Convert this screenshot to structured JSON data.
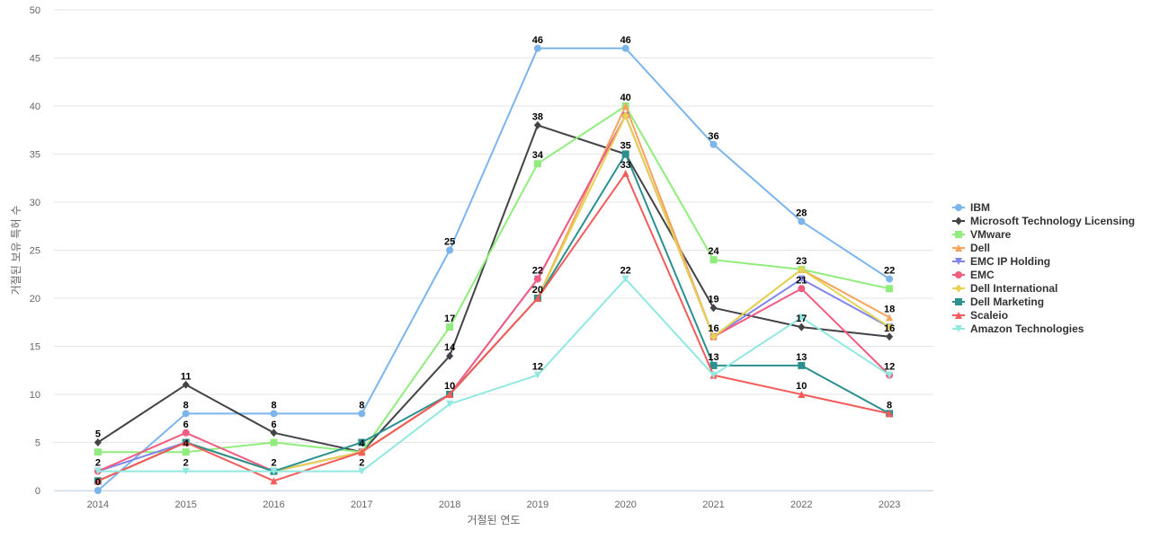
{
  "chart_data": {
    "type": "line",
    "xlabel": "거절된 연도",
    "ylabel": "거절된 보유 특허 수",
    "ylim": [
      0,
      50
    ],
    "yticks": [
      0,
      5,
      10,
      15,
      20,
      25,
      30,
      35,
      40,
      45,
      50
    ],
    "grid": true,
    "legend_position": "right",
    "categories": [
      "2014",
      "2015",
      "2016",
      "2017",
      "2018",
      "2019",
      "2020",
      "2021",
      "2022",
      "2023"
    ],
    "series": [
      {
        "name": "IBM",
        "color": "#7cb5ec",
        "marker": "circle",
        "values": [
          0,
          8,
          8,
          8,
          25,
          46,
          46,
          36,
          28,
          22
        ]
      },
      {
        "name": "Microsoft Technology Licensing",
        "color": "#434348",
        "marker": "diamond",
        "values": [
          5,
          11,
          6,
          4,
          14,
          38,
          35,
          19,
          17,
          16
        ]
      },
      {
        "name": "VMware",
        "color": "#90ed7d",
        "marker": "square",
        "values": [
          4,
          4,
          5,
          4,
          17,
          34,
          40,
          24,
          23,
          21
        ]
      },
      {
        "name": "Dell",
        "color": "#f7a35c",
        "marker": "triangle",
        "values": [
          1,
          5,
          2,
          4,
          10,
          20,
          40,
          16,
          23,
          18
        ]
      },
      {
        "name": "EMC IP Holding",
        "color": "#8085e9",
        "marker": "triangle-down",
        "values": [
          2,
          5,
          2,
          4,
          10,
          22,
          39,
          16,
          22,
          17
        ]
      },
      {
        "name": "EMC",
        "color": "#f15c80",
        "marker": "circle",
        "values": [
          2,
          6,
          2,
          4,
          10,
          22,
          39,
          16,
          21,
          12
        ]
      },
      {
        "name": "Dell International",
        "color": "#e4d354",
        "marker": "diamond",
        "values": [
          1,
          5,
          2,
          4,
          10,
          20,
          39,
          16,
          23,
          17
        ]
      },
      {
        "name": "Dell Marketing",
        "color": "#2b908f",
        "marker": "square",
        "values": [
          1,
          5,
          2,
          5,
          10,
          20,
          35,
          13,
          13,
          8
        ]
      },
      {
        "name": "Scaleio",
        "color": "#f45b5b",
        "marker": "triangle",
        "values": [
          1,
          5,
          1,
          4,
          10,
          20,
          33,
          12,
          10,
          8
        ]
      },
      {
        "name": "Amazon Technologies",
        "color": "#91e8e1",
        "marker": "triangle-down",
        "values": [
          2,
          2,
          2,
          2,
          9,
          12,
          22,
          12,
          18,
          12
        ]
      }
    ],
    "data_labels": [
      {
        "x": "2014",
        "y": 5,
        "text": "5"
      },
      {
        "x": "2014",
        "y": 2,
        "text": "2"
      },
      {
        "x": "2014",
        "y": 0,
        "text": "0"
      },
      {
        "x": "2015",
        "y": 11,
        "text": "11"
      },
      {
        "x": "2015",
        "y": 8,
        "text": "8"
      },
      {
        "x": "2015",
        "y": 6,
        "text": "6"
      },
      {
        "x": "2015",
        "y": 4,
        "text": "4"
      },
      {
        "x": "2015",
        "y": 2,
        "text": "2"
      },
      {
        "x": "2016",
        "y": 8,
        "text": "8"
      },
      {
        "x": "2016",
        "y": 6,
        "text": "6"
      },
      {
        "x": "2016",
        "y": 2,
        "text": "2"
      },
      {
        "x": "2017",
        "y": 8,
        "text": "8"
      },
      {
        "x": "2017",
        "y": 4,
        "text": "4"
      },
      {
        "x": "2017",
        "y": 2,
        "text": "2"
      },
      {
        "x": "2018",
        "y": 25,
        "text": "25"
      },
      {
        "x": "2018",
        "y": 17,
        "text": "17"
      },
      {
        "x": "2018",
        "y": 14,
        "text": "14"
      },
      {
        "x": "2018",
        "y": 10,
        "text": "10"
      },
      {
        "x": "2019",
        "y": 46,
        "text": "46"
      },
      {
        "x": "2019",
        "y": 38,
        "text": "38"
      },
      {
        "x": "2019",
        "y": 34,
        "text": "34"
      },
      {
        "x": "2019",
        "y": 22,
        "text": "22"
      },
      {
        "x": "2019",
        "y": 20,
        "text": "20"
      },
      {
        "x": "2019",
        "y": 12,
        "text": "12"
      },
      {
        "x": "2020",
        "y": 46,
        "text": "46"
      },
      {
        "x": "2020",
        "y": 40,
        "text": "40"
      },
      {
        "x": "2020",
        "y": 35,
        "text": "35"
      },
      {
        "x": "2020",
        "y": 33,
        "text": "33"
      },
      {
        "x": "2020",
        "y": 22,
        "text": "22"
      },
      {
        "x": "2021",
        "y": 36,
        "text": "36"
      },
      {
        "x": "2021",
        "y": 24,
        "text": "24"
      },
      {
        "x": "2021",
        "y": 19,
        "text": "19"
      },
      {
        "x": "2021",
        "y": 16,
        "text": "16"
      },
      {
        "x": "2021",
        "y": 13,
        "text": "13"
      },
      {
        "x": "2022",
        "y": 28,
        "text": "28"
      },
      {
        "x": "2022",
        "y": 23,
        "text": "23"
      },
      {
        "x": "2022",
        "y": 21,
        "text": "21"
      },
      {
        "x": "2022",
        "y": 17,
        "text": "17"
      },
      {
        "x": "2022",
        "y": 13,
        "text": "13"
      },
      {
        "x": "2022",
        "y": 10,
        "text": "10"
      },
      {
        "x": "2023",
        "y": 22,
        "text": "22"
      },
      {
        "x": "2023",
        "y": 18,
        "text": "18"
      },
      {
        "x": "2023",
        "y": 16,
        "text": "16"
      },
      {
        "x": "2023",
        "y": 12,
        "text": "12"
      },
      {
        "x": "2023",
        "y": 8,
        "text": "8"
      }
    ]
  }
}
